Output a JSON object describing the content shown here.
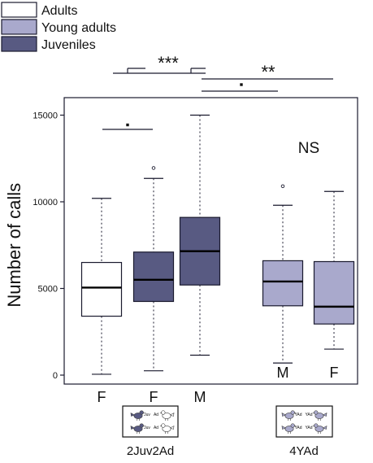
{
  "chart_data": {
    "type": "boxplot",
    "ylabel": "Number of calls",
    "ylim": [
      0,
      15000
    ],
    "y_ticks": [
      0,
      5000,
      10000,
      15000
    ],
    "legend": {
      "placement": "top-left",
      "entries": [
        {
          "name": "Adults",
          "color": "#ffffff"
        },
        {
          "name": "Young adults",
          "color": "#a9a9cc"
        },
        {
          "name": "Juveniles",
          "color": "#585a82"
        }
      ]
    },
    "groups": [
      {
        "name": "2Juv2Ad",
        "icon": "bird-group-juv-ad-icon",
        "icon_labels": [
          "Juv",
          "Ad",
          "Juv",
          "Ad"
        ]
      },
      {
        "name": "4YAd",
        "icon": "bird-group-yad-icon",
        "icon_labels": [
          "YAd",
          "YAd",
          "YAd",
          "YAd"
        ]
      }
    ],
    "boxes": [
      {
        "label": "F",
        "tick_position": "below-axis",
        "group": 0,
        "series": "Adults",
        "color": "#ffffff",
        "min": 50,
        "q1": 3400,
        "median": 5050,
        "q3": 6500,
        "max": 10200,
        "outliers": []
      },
      {
        "label": "F",
        "tick_position": "below-axis",
        "group": 0,
        "series": "Juveniles",
        "color": "#585a82",
        "min": 250,
        "q1": 4250,
        "median": 5500,
        "q3": 7100,
        "max": 11350,
        "outliers": [
          11950
        ]
      },
      {
        "label": "M",
        "tick_position": "below-axis",
        "group": 0,
        "series": "Juveniles",
        "color": "#585a82",
        "min": 1150,
        "q1": 5200,
        "median": 7150,
        "q3": 9100,
        "max": 15000,
        "outliers": []
      },
      {
        "label": "M",
        "tick_position": "inside",
        "group": 1,
        "series": "Young adults",
        "color": "#a9a9cc",
        "min": 700,
        "q1": 4000,
        "median": 5400,
        "q3": 6600,
        "max": 9800,
        "outliers": [
          10900
        ]
      },
      {
        "label": "F",
        "tick_position": "inside",
        "group": 1,
        "series": "Young adults",
        "color": "#a9a9cc",
        "min": 1500,
        "q1": 2950,
        "median": 3950,
        "q3": 6550,
        "max": 10600,
        "outliers": []
      }
    ],
    "significance": [
      {
        "label": "•",
        "from_box": 0,
        "to_box": 1
      },
      {
        "label": "***",
        "from_box": 0,
        "to_box": 2
      },
      {
        "label": "•",
        "from_box": 2,
        "to_box": 3
      },
      {
        "label": "**",
        "from_box": 2,
        "to_box": 4
      },
      {
        "label": "NS",
        "from_box": 3,
        "to_box": 4
      }
    ]
  }
}
